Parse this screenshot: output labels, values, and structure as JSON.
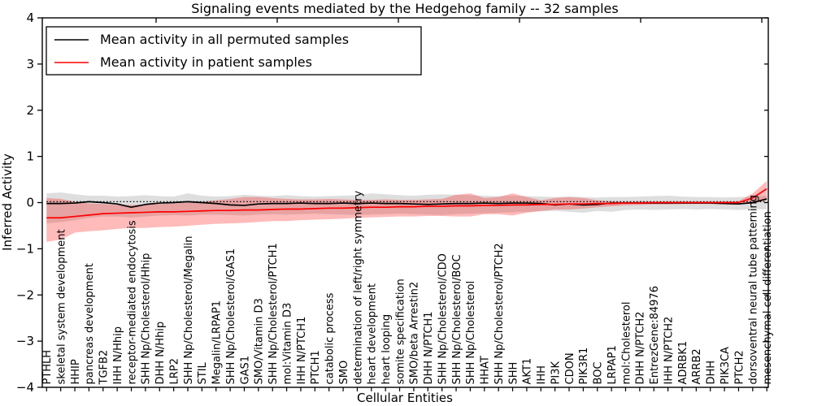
{
  "chart_data": {
    "type": "line",
    "title": "Signaling events mediated by the Hedgehog family -- 32 samples",
    "xlabel": "Cellular Entities",
    "ylabel": "Inferred Activity",
    "ylim": [
      -4,
      4
    ],
    "ytick_labels": [
      "4",
      "3",
      "2",
      "1",
      "0",
      "−1",
      "−2",
      "−3",
      "−4"
    ],
    "ytick_values": [
      4,
      3,
      2,
      1,
      0,
      -1,
      -2,
      -3,
      -4
    ],
    "grid": false,
    "legend_position": "upper left",
    "dotted_baseline": 0.02,
    "categories": [
      "PTHLH",
      "skeletal system development",
      "HHIP",
      "pancreas development",
      "TGFB2",
      "IHH N/Hhip",
      "receptor-mediated endocytosis",
      "SHH Np/Cholesterol/Hhip",
      "DHH N/Hhip",
      "LRP2",
      "SHH Np/Cholesterol/Megalin",
      "STIL",
      "Megalin/LRPAP1",
      "SHH Np/Cholesterol/GAS1",
      "GAS1",
      "SMO/Vitamin D3",
      "SHH Np/Cholesterol/PTCH1",
      "mol:Vitamin D3",
      "IHH N/PTCH1",
      "PTCH1",
      "catabolic process",
      "SMO",
      "determination of left/right symmetry",
      "heart development",
      "heart looping",
      "somite specification",
      "SMO/beta Arrestin2",
      "DHH N/PTCH1",
      "SHH Np/Cholesterol/CDO",
      "SHH Np/Cholesterol/BOC",
      "SHH Np/Cholesterol",
      "HHAT",
      "SHH Np/Cholesterol/PTCH2",
      "SHH",
      "AKT1",
      "IHH",
      "PI3K",
      "CDON",
      "PIK3R1",
      "BOC",
      "LRPAP1",
      "mol:Cholesterol",
      "DHH N/PTCH2",
      "EntrezGene:84976",
      "IHH N/PTCH2",
      "ADRBK1",
      "ARRB2",
      "DHH",
      "PIK3CA",
      "PTCH2",
      "dorsoventral neural tube patterning",
      "mesenchymal cell differentiation"
    ],
    "series": [
      {
        "name": "Mean activity in all permuted samples",
        "color": "#000000",
        "values": [
          -0.02,
          -0.02,
          -0.01,
          0.02,
          0.0,
          -0.03,
          -0.1,
          -0.04,
          -0.01,
          0.0,
          0.02,
          0.0,
          -0.02,
          -0.05,
          -0.06,
          -0.03,
          -0.02,
          -0.02,
          -0.01,
          -0.02,
          -0.02,
          -0.01,
          -0.02,
          -0.01,
          -0.02,
          -0.02,
          -0.03,
          -0.04,
          -0.03,
          -0.02,
          -0.02,
          -0.01,
          -0.02,
          -0.01,
          -0.01,
          -0.02,
          -0.05,
          -0.03,
          -0.05,
          -0.04,
          -0.01,
          -0.01,
          -0.01,
          -0.01,
          -0.01,
          -0.01,
          -0.01,
          -0.01,
          -0.02,
          -0.03,
          0.0,
          0.08
        ]
      },
      {
        "name": "Mean activity in patient samples",
        "color": "#ff0000",
        "values": [
          -0.33,
          -0.33,
          -0.3,
          -0.27,
          -0.24,
          -0.23,
          -0.22,
          -0.21,
          -0.2,
          -0.2,
          -0.19,
          -0.18,
          -0.17,
          -0.17,
          -0.16,
          -0.16,
          -0.15,
          -0.14,
          -0.14,
          -0.13,
          -0.12,
          -0.12,
          -0.11,
          -0.1,
          -0.1,
          -0.09,
          -0.09,
          -0.08,
          -0.08,
          -0.07,
          -0.07,
          -0.06,
          -0.06,
          -0.05,
          -0.05,
          -0.04,
          -0.04,
          -0.03,
          -0.03,
          -0.02,
          -0.02,
          -0.01,
          -0.01,
          0.0,
          0.0,
          0.0,
          0.0,
          0.0,
          0.0,
          0.0,
          0.1,
          0.3
        ]
      }
    ],
    "bands": [
      {
        "name": "permuted-samples-spread",
        "color": "rgba(0,0,0,0.13)",
        "upper": [
          0.2,
          0.22,
          0.18,
          0.15,
          0.15,
          0.13,
          0.14,
          0.16,
          0.14,
          0.13,
          0.2,
          0.15,
          0.13,
          0.14,
          0.17,
          0.15,
          0.14,
          0.16,
          0.14,
          0.13,
          0.14,
          0.15,
          0.16,
          0.2,
          0.18,
          0.16,
          0.15,
          0.17,
          0.18,
          0.17,
          0.16,
          0.15,
          0.14,
          0.15,
          0.14,
          0.13,
          0.12,
          0.13,
          0.12,
          0.11,
          0.12,
          0.12,
          0.13,
          0.14,
          0.15,
          0.13,
          0.12,
          0.12,
          0.11,
          0.12,
          0.13,
          0.15
        ],
        "lower": [
          -0.45,
          -0.42,
          -0.38,
          -0.33,
          -0.3,
          -0.3,
          -0.32,
          -0.3,
          -0.28,
          -0.27,
          -0.28,
          -0.26,
          -0.26,
          -0.27,
          -0.28,
          -0.26,
          -0.25,
          -0.26,
          -0.25,
          -0.24,
          -0.25,
          -0.26,
          -0.27,
          -0.26,
          -0.25,
          -0.24,
          -0.25,
          -0.26,
          -0.27,
          -0.25,
          -0.24,
          -0.23,
          -0.22,
          -0.21,
          -0.2,
          -0.19,
          -0.18,
          -0.2,
          -0.22,
          -0.18,
          -0.2,
          -0.16,
          -0.15,
          -0.16,
          -0.15,
          -0.14,
          -0.15,
          -0.14,
          -0.15,
          -0.16,
          -0.14,
          -0.15
        ]
      },
      {
        "name": "patient-samples-spread",
        "color": "rgba(255,0,0,0.27)",
        "upper": [
          0.1,
          0.08,
          0.02,
          -0.02,
          -0.03,
          -0.05,
          -0.05,
          -0.04,
          -0.03,
          -0.02,
          0.0,
          0.02,
          0.05,
          0.08,
          0.12,
          0.12,
          0.1,
          0.08,
          0.07,
          0.07,
          0.08,
          0.07,
          0.06,
          0.06,
          0.07,
          0.06,
          0.06,
          0.07,
          0.08,
          0.17,
          0.2,
          0.1,
          0.12,
          0.2,
          0.12,
          0.05,
          0.1,
          0.12,
          0.1,
          0.05,
          0.03,
          0.02,
          0.03,
          0.02,
          0.02,
          0.02,
          0.02,
          0.02,
          0.02,
          0.03,
          0.2,
          0.47
        ],
        "lower": [
          -0.85,
          -0.8,
          -0.65,
          -0.62,
          -0.6,
          -0.57,
          -0.55,
          -0.55,
          -0.53,
          -0.52,
          -0.5,
          -0.48,
          -0.46,
          -0.45,
          -0.44,
          -0.42,
          -0.4,
          -0.4,
          -0.38,
          -0.37,
          -0.36,
          -0.35,
          -0.33,
          -0.32,
          -0.31,
          -0.3,
          -0.3,
          -0.29,
          -0.29,
          -0.3,
          -0.3,
          -0.25,
          -0.25,
          -0.28,
          -0.22,
          -0.18,
          -0.15,
          -0.15,
          -0.13,
          -0.1,
          -0.08,
          -0.06,
          -0.05,
          -0.04,
          -0.04,
          -0.03,
          -0.03,
          -0.03,
          -0.03,
          -0.04,
          -0.02,
          0.05
        ]
      }
    ],
    "legend": {
      "entries": [
        {
          "label": "Mean activity in all permuted samples",
          "color": "#000000"
        },
        {
          "label": "Mean activity in patient samples",
          "color": "#ff0000"
        }
      ]
    }
  }
}
